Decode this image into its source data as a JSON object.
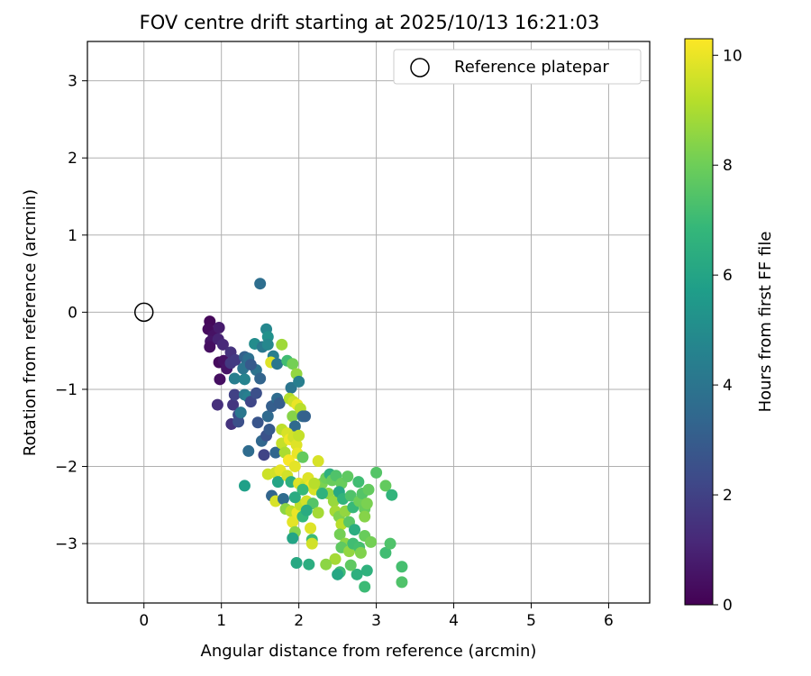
{
  "chart_data": {
    "type": "scatter",
    "title": "FOV centre drift starting at 2025/10/13 16:21:03",
    "xlabel": "Angular distance from reference (arcmin)",
    "ylabel": "Rotation from reference (arcmin)",
    "xlim": [
      -0.73,
      6.53
    ],
    "ylim": [
      -3.77,
      3.51
    ],
    "xticks": [
      0,
      1,
      2,
      3,
      4,
      5,
      6
    ],
    "yticks": [
      -3,
      -2,
      -1,
      0,
      1,
      2,
      3
    ],
    "xtick_labels": [
      "0",
      "1",
      "2",
      "3",
      "4",
      "5",
      "6"
    ],
    "ytick_labels": [
      "−3",
      "−2",
      "−1",
      "0",
      "1",
      "2",
      "3"
    ],
    "grid": true,
    "legend": {
      "placement": "top-right",
      "entries": [
        {
          "label": "Reference platepar",
          "marker": "open-circle"
        }
      ]
    },
    "reference_point": {
      "x": 0,
      "y": 0
    },
    "colorbar": {
      "label": "Hours from first FF file",
      "colormap": "viridis",
      "range": [
        0,
        10.3
      ],
      "ticks": [
        0,
        2,
        4,
        6,
        8,
        10
      ],
      "tick_labels": [
        "0",
        "2",
        "4",
        "6",
        "8",
        "10"
      ],
      "colors": [
        "#440154",
        "#482878",
        "#3e4a89",
        "#31688e",
        "#26828e",
        "#1f9e89",
        "#35b779",
        "#6ece58",
        "#b5de2b",
        "#fde725"
      ]
    },
    "points": [
      {
        "x": 0.85,
        "y": -0.12,
        "c": 0.2
      },
      {
        "x": 0.83,
        "y": -0.22,
        "c": 0.3
      },
      {
        "x": 0.9,
        "y": -0.3,
        "c": 0.5
      },
      {
        "x": 0.86,
        "y": -0.38,
        "c": 0.6
      },
      {
        "x": 0.85,
        "y": -0.45,
        "c": 0.4
      },
      {
        "x": 0.97,
        "y": -0.2,
        "c": 0.8
      },
      {
        "x": 0.96,
        "y": -0.35,
        "c": 1.0
      },
      {
        "x": 1.02,
        "y": -0.42,
        "c": 1.2
      },
      {
        "x": 0.97,
        "y": -0.65,
        "c": 0.3
      },
      {
        "x": 1.03,
        "y": -0.63,
        "c": 0.5
      },
      {
        "x": 1.07,
        "y": -0.73,
        "c": 0.6
      },
      {
        "x": 0.98,
        "y": -0.87,
        "c": 0.4
      },
      {
        "x": 1.12,
        "y": -0.52,
        "c": 1.5
      },
      {
        "x": 1.12,
        "y": -0.66,
        "c": 1.7
      },
      {
        "x": 1.18,
        "y": -0.62,
        "c": 1.8
      },
      {
        "x": 0.95,
        "y": -1.2,
        "c": 1.4
      },
      {
        "x": 1.15,
        "y": -1.2,
        "c": 1.6
      },
      {
        "x": 1.17,
        "y": -1.07,
        "c": 2.0
      },
      {
        "x": 1.13,
        "y": -1.45,
        "c": 1.5
      },
      {
        "x": 1.22,
        "y": -1.33,
        "c": 2.3
      },
      {
        "x": 1.22,
        "y": -1.42,
        "c": 2.5
      },
      {
        "x": 1.3,
        "y": -0.58,
        "c": 3.2
      },
      {
        "x": 1.33,
        "y": -0.67,
        "c": 3.5
      },
      {
        "x": 1.35,
        "y": -0.6,
        "c": 3.8
      },
      {
        "x": 1.28,
        "y": -0.73,
        "c": 4.0
      },
      {
        "x": 1.17,
        "y": -0.86,
        "c": 4.4
      },
      {
        "x": 1.3,
        "y": -0.87,
        "c": 4.6
      },
      {
        "x": 1.25,
        "y": -1.3,
        "c": 4.1
      },
      {
        "x": 1.3,
        "y": -1.07,
        "c": 4.2
      },
      {
        "x": 1.35,
        "y": -1.1,
        "c": 4.5
      },
      {
        "x": 1.35,
        "y": -1.8,
        "c": 3.6
      },
      {
        "x": 1.3,
        "y": -2.25,
        "c": 5.8
      },
      {
        "x": 1.43,
        "y": -0.41,
        "c": 5.0
      },
      {
        "x": 1.45,
        "y": -0.75,
        "c": 3.9
      },
      {
        "x": 1.38,
        "y": -0.68,
        "c": 2.9
      },
      {
        "x": 1.38,
        "y": -1.16,
        "c": 2.2
      },
      {
        "x": 1.45,
        "y": -1.05,
        "c": 2.5
      },
      {
        "x": 1.47,
        "y": -1.43,
        "c": 2.7
      },
      {
        "x": 1.5,
        "y": -0.86,
        "c": 3.3
      },
      {
        "x": 1.53,
        "y": -0.45,
        "c": 4.2
      },
      {
        "x": 1.5,
        "y": 0.37,
        "c": 3.7
      },
      {
        "x": 1.58,
        "y": -0.22,
        "c": 4.8
      },
      {
        "x": 1.6,
        "y": -0.32,
        "c": 5.2
      },
      {
        "x": 1.6,
        "y": -0.42,
        "c": 4.8
      },
      {
        "x": 1.52,
        "y": -1.67,
        "c": 3.4
      },
      {
        "x": 1.58,
        "y": -1.6,
        "c": 2.6
      },
      {
        "x": 1.55,
        "y": -1.85,
        "c": 2.1
      },
      {
        "x": 1.6,
        "y": -1.35,
        "c": 3.5
      },
      {
        "x": 1.62,
        "y": -1.52,
        "c": 2.9
      },
      {
        "x": 1.65,
        "y": -1.22,
        "c": 3.1
      },
      {
        "x": 1.67,
        "y": -0.57,
        "c": 4.4
      },
      {
        "x": 1.64,
        "y": -0.65,
        "c": 9.8
      },
      {
        "x": 1.72,
        "y": -0.67,
        "c": 4.1
      },
      {
        "x": 1.72,
        "y": -1.12,
        "c": 3.6
      },
      {
        "x": 1.75,
        "y": -1.18,
        "c": 3.0
      },
      {
        "x": 1.6,
        "y": -2.1,
        "c": 9.5
      },
      {
        "x": 1.65,
        "y": -2.38,
        "c": 3.3
      },
      {
        "x": 1.7,
        "y": -1.82,
        "c": 3.4
      },
      {
        "x": 1.7,
        "y": -2.08,
        "c": 9.6
      },
      {
        "x": 1.73,
        "y": -2.2,
        "c": 6.0
      },
      {
        "x": 1.76,
        "y": -2.05,
        "c": 9.9
      },
      {
        "x": 1.7,
        "y": -2.45,
        "c": 9.7
      },
      {
        "x": 1.78,
        "y": -1.52,
        "c": 9.3
      },
      {
        "x": 1.78,
        "y": -1.7,
        "c": 9.4
      },
      {
        "x": 1.8,
        "y": -2.42,
        "c": 3.6
      },
      {
        "x": 1.78,
        "y": -0.42,
        "c": 8.8
      },
      {
        "x": 1.85,
        "y": -0.63,
        "c": 7.1
      },
      {
        "x": 1.9,
        "y": -0.98,
        "c": 4.0
      },
      {
        "x": 1.92,
        "y": -0.67,
        "c": 8.1
      },
      {
        "x": 1.97,
        "y": -0.8,
        "c": 8.6
      },
      {
        "x": 2.0,
        "y": -0.9,
        "c": 4.4
      },
      {
        "x": 1.88,
        "y": -1.12,
        "c": 9.1
      },
      {
        "x": 1.93,
        "y": -1.16,
        "c": 9.5
      },
      {
        "x": 1.92,
        "y": -1.35,
        "c": 8.4
      },
      {
        "x": 1.98,
        "y": -1.2,
        "c": 10.0
      },
      {
        "x": 2.02,
        "y": -1.25,
        "c": 9.2
      },
      {
        "x": 1.95,
        "y": -1.48,
        "c": 3.5
      },
      {
        "x": 2.05,
        "y": -1.35,
        "c": 3.7
      },
      {
        "x": 2.08,
        "y": -1.35,
        "c": 3.2
      },
      {
        "x": 1.85,
        "y": -1.57,
        "c": 9.7
      },
      {
        "x": 1.88,
        "y": -1.65,
        "c": 10.1
      },
      {
        "x": 1.93,
        "y": -1.62,
        "c": 9.6
      },
      {
        "x": 1.97,
        "y": -1.72,
        "c": 9.8
      },
      {
        "x": 2.0,
        "y": -1.6,
        "c": 9.4
      },
      {
        "x": 1.82,
        "y": -1.82,
        "c": 9.0
      },
      {
        "x": 1.87,
        "y": -1.92,
        "c": 10.2
      },
      {
        "x": 1.95,
        "y": -2.0,
        "c": 9.9
      },
      {
        "x": 1.98,
        "y": -1.83,
        "c": 10.0
      },
      {
        "x": 2.05,
        "y": -1.88,
        "c": 7.8
      },
      {
        "x": 1.85,
        "y": -2.12,
        "c": 9.6
      },
      {
        "x": 1.9,
        "y": -2.2,
        "c": 6.5
      },
      {
        "x": 2.0,
        "y": -2.22,
        "c": 9.8
      },
      {
        "x": 2.08,
        "y": -2.25,
        "c": 9.5
      },
      {
        "x": 2.12,
        "y": -2.15,
        "c": 9.8
      },
      {
        "x": 2.15,
        "y": -2.25,
        "c": 10.1
      },
      {
        "x": 2.2,
        "y": -2.3,
        "c": 9.7
      },
      {
        "x": 2.25,
        "y": -1.93,
        "c": 9.7
      },
      {
        "x": 1.83,
        "y": -2.55,
        "c": 8.5
      },
      {
        "x": 1.9,
        "y": -2.58,
        "c": 9.2
      },
      {
        "x": 1.92,
        "y": -2.72,
        "c": 9.9
      },
      {
        "x": 1.95,
        "y": -2.85,
        "c": 8.4
      },
      {
        "x": 1.98,
        "y": -2.6,
        "c": 10.0
      },
      {
        "x": 2.02,
        "y": -2.5,
        "c": 9.3
      },
      {
        "x": 2.1,
        "y": -2.45,
        "c": 9.6
      },
      {
        "x": 2.18,
        "y": -2.48,
        "c": 7.5
      },
      {
        "x": 2.05,
        "y": -2.65,
        "c": 6.8
      },
      {
        "x": 2.1,
        "y": -2.57,
        "c": 6.3
      },
      {
        "x": 1.92,
        "y": -2.93,
        "c": 6.0
      },
      {
        "x": 2.15,
        "y": -2.8,
        "c": 9.8
      },
      {
        "x": 2.17,
        "y": -2.95,
        "c": 7.0
      },
      {
        "x": 2.17,
        "y": -3.0,
        "c": 9.6
      },
      {
        "x": 2.25,
        "y": -2.6,
        "c": 8.9
      },
      {
        "x": 1.97,
        "y": -3.25,
        "c": 6.2
      },
      {
        "x": 2.13,
        "y": -3.27,
        "c": 6.4
      },
      {
        "x": 2.3,
        "y": -2.22,
        "c": 8.2
      },
      {
        "x": 2.35,
        "y": -2.15,
        "c": 8.0
      },
      {
        "x": 2.4,
        "y": -2.1,
        "c": 6.5
      },
      {
        "x": 2.43,
        "y": -2.18,
        "c": 7.9
      },
      {
        "x": 2.48,
        "y": -2.12,
        "c": 7.4
      },
      {
        "x": 2.55,
        "y": -2.22,
        "c": 7.9
      },
      {
        "x": 2.38,
        "y": -2.35,
        "c": 8.6
      },
      {
        "x": 2.45,
        "y": -2.45,
        "c": 8.7
      },
      {
        "x": 2.52,
        "y": -2.33,
        "c": 6.2
      },
      {
        "x": 2.57,
        "y": -2.42,
        "c": 6.7
      },
      {
        "x": 2.47,
        "y": -2.58,
        "c": 8.9
      },
      {
        "x": 2.52,
        "y": -2.65,
        "c": 8.3
      },
      {
        "x": 2.55,
        "y": -2.75,
        "c": 9.2
      },
      {
        "x": 2.53,
        "y": -2.88,
        "c": 8.1
      },
      {
        "x": 2.6,
        "y": -2.58,
        "c": 8.6
      },
      {
        "x": 2.63,
        "y": -2.13,
        "c": 7.7
      },
      {
        "x": 2.67,
        "y": -2.38,
        "c": 7.4
      },
      {
        "x": 2.7,
        "y": -2.53,
        "c": 6.9
      },
      {
        "x": 2.65,
        "y": -2.72,
        "c": 7.6
      },
      {
        "x": 2.72,
        "y": -2.82,
        "c": 6.4
      },
      {
        "x": 2.6,
        "y": -3.0,
        "c": 8.5
      },
      {
        "x": 2.55,
        "y": -3.05,
        "c": 7.7
      },
      {
        "x": 2.65,
        "y": -3.1,
        "c": 8.6
      },
      {
        "x": 2.7,
        "y": -3.0,
        "c": 7.1
      },
      {
        "x": 2.77,
        "y": -2.2,
        "c": 7.1
      },
      {
        "x": 2.78,
        "y": -2.45,
        "c": 8.0
      },
      {
        "x": 2.82,
        "y": -2.35,
        "c": 7.5
      },
      {
        "x": 2.85,
        "y": -2.55,
        "c": 7.9
      },
      {
        "x": 2.88,
        "y": -2.48,
        "c": 8.2
      },
      {
        "x": 2.9,
        "y": -2.3,
        "c": 7.8
      },
      {
        "x": 2.85,
        "y": -2.65,
        "c": 8.4
      },
      {
        "x": 2.85,
        "y": -2.9,
        "c": 7.9
      },
      {
        "x": 2.93,
        "y": -2.98,
        "c": 8.1
      },
      {
        "x": 2.78,
        "y": -3.05,
        "c": 7.2
      },
      {
        "x": 2.8,
        "y": -3.12,
        "c": 8.3
      },
      {
        "x": 2.88,
        "y": -3.35,
        "c": 6.6
      },
      {
        "x": 2.75,
        "y": -3.4,
        "c": 6.5
      },
      {
        "x": 2.85,
        "y": -3.56,
        "c": 7.0
      },
      {
        "x": 2.67,
        "y": -3.28,
        "c": 7.7
      },
      {
        "x": 2.47,
        "y": -3.2,
        "c": 8.9
      },
      {
        "x": 2.35,
        "y": -3.27,
        "c": 8.5
      },
      {
        "x": 2.53,
        "y": -3.37,
        "c": 7.0
      },
      {
        "x": 2.5,
        "y": -3.4,
        "c": 6.1
      },
      {
        "x": 3.0,
        "y": -2.08,
        "c": 7.5
      },
      {
        "x": 3.12,
        "y": -2.25,
        "c": 7.8
      },
      {
        "x": 3.2,
        "y": -2.37,
        "c": 6.7
      },
      {
        "x": 3.12,
        "y": -3.12,
        "c": 7.1
      },
      {
        "x": 3.18,
        "y": -3.0,
        "c": 7.4
      },
      {
        "x": 3.33,
        "y": -3.3,
        "c": 7.2
      },
      {
        "x": 3.33,
        "y": -3.5,
        "c": 7.4
      },
      {
        "x": 2.3,
        "y": -2.35,
        "c": 6.6
      },
      {
        "x": 2.2,
        "y": -2.22,
        "c": 9.2
      },
      {
        "x": 2.05,
        "y": -2.3,
        "c": 6.9
      },
      {
        "x": 1.95,
        "y": -2.4,
        "c": 6.3
      }
    ]
  }
}
